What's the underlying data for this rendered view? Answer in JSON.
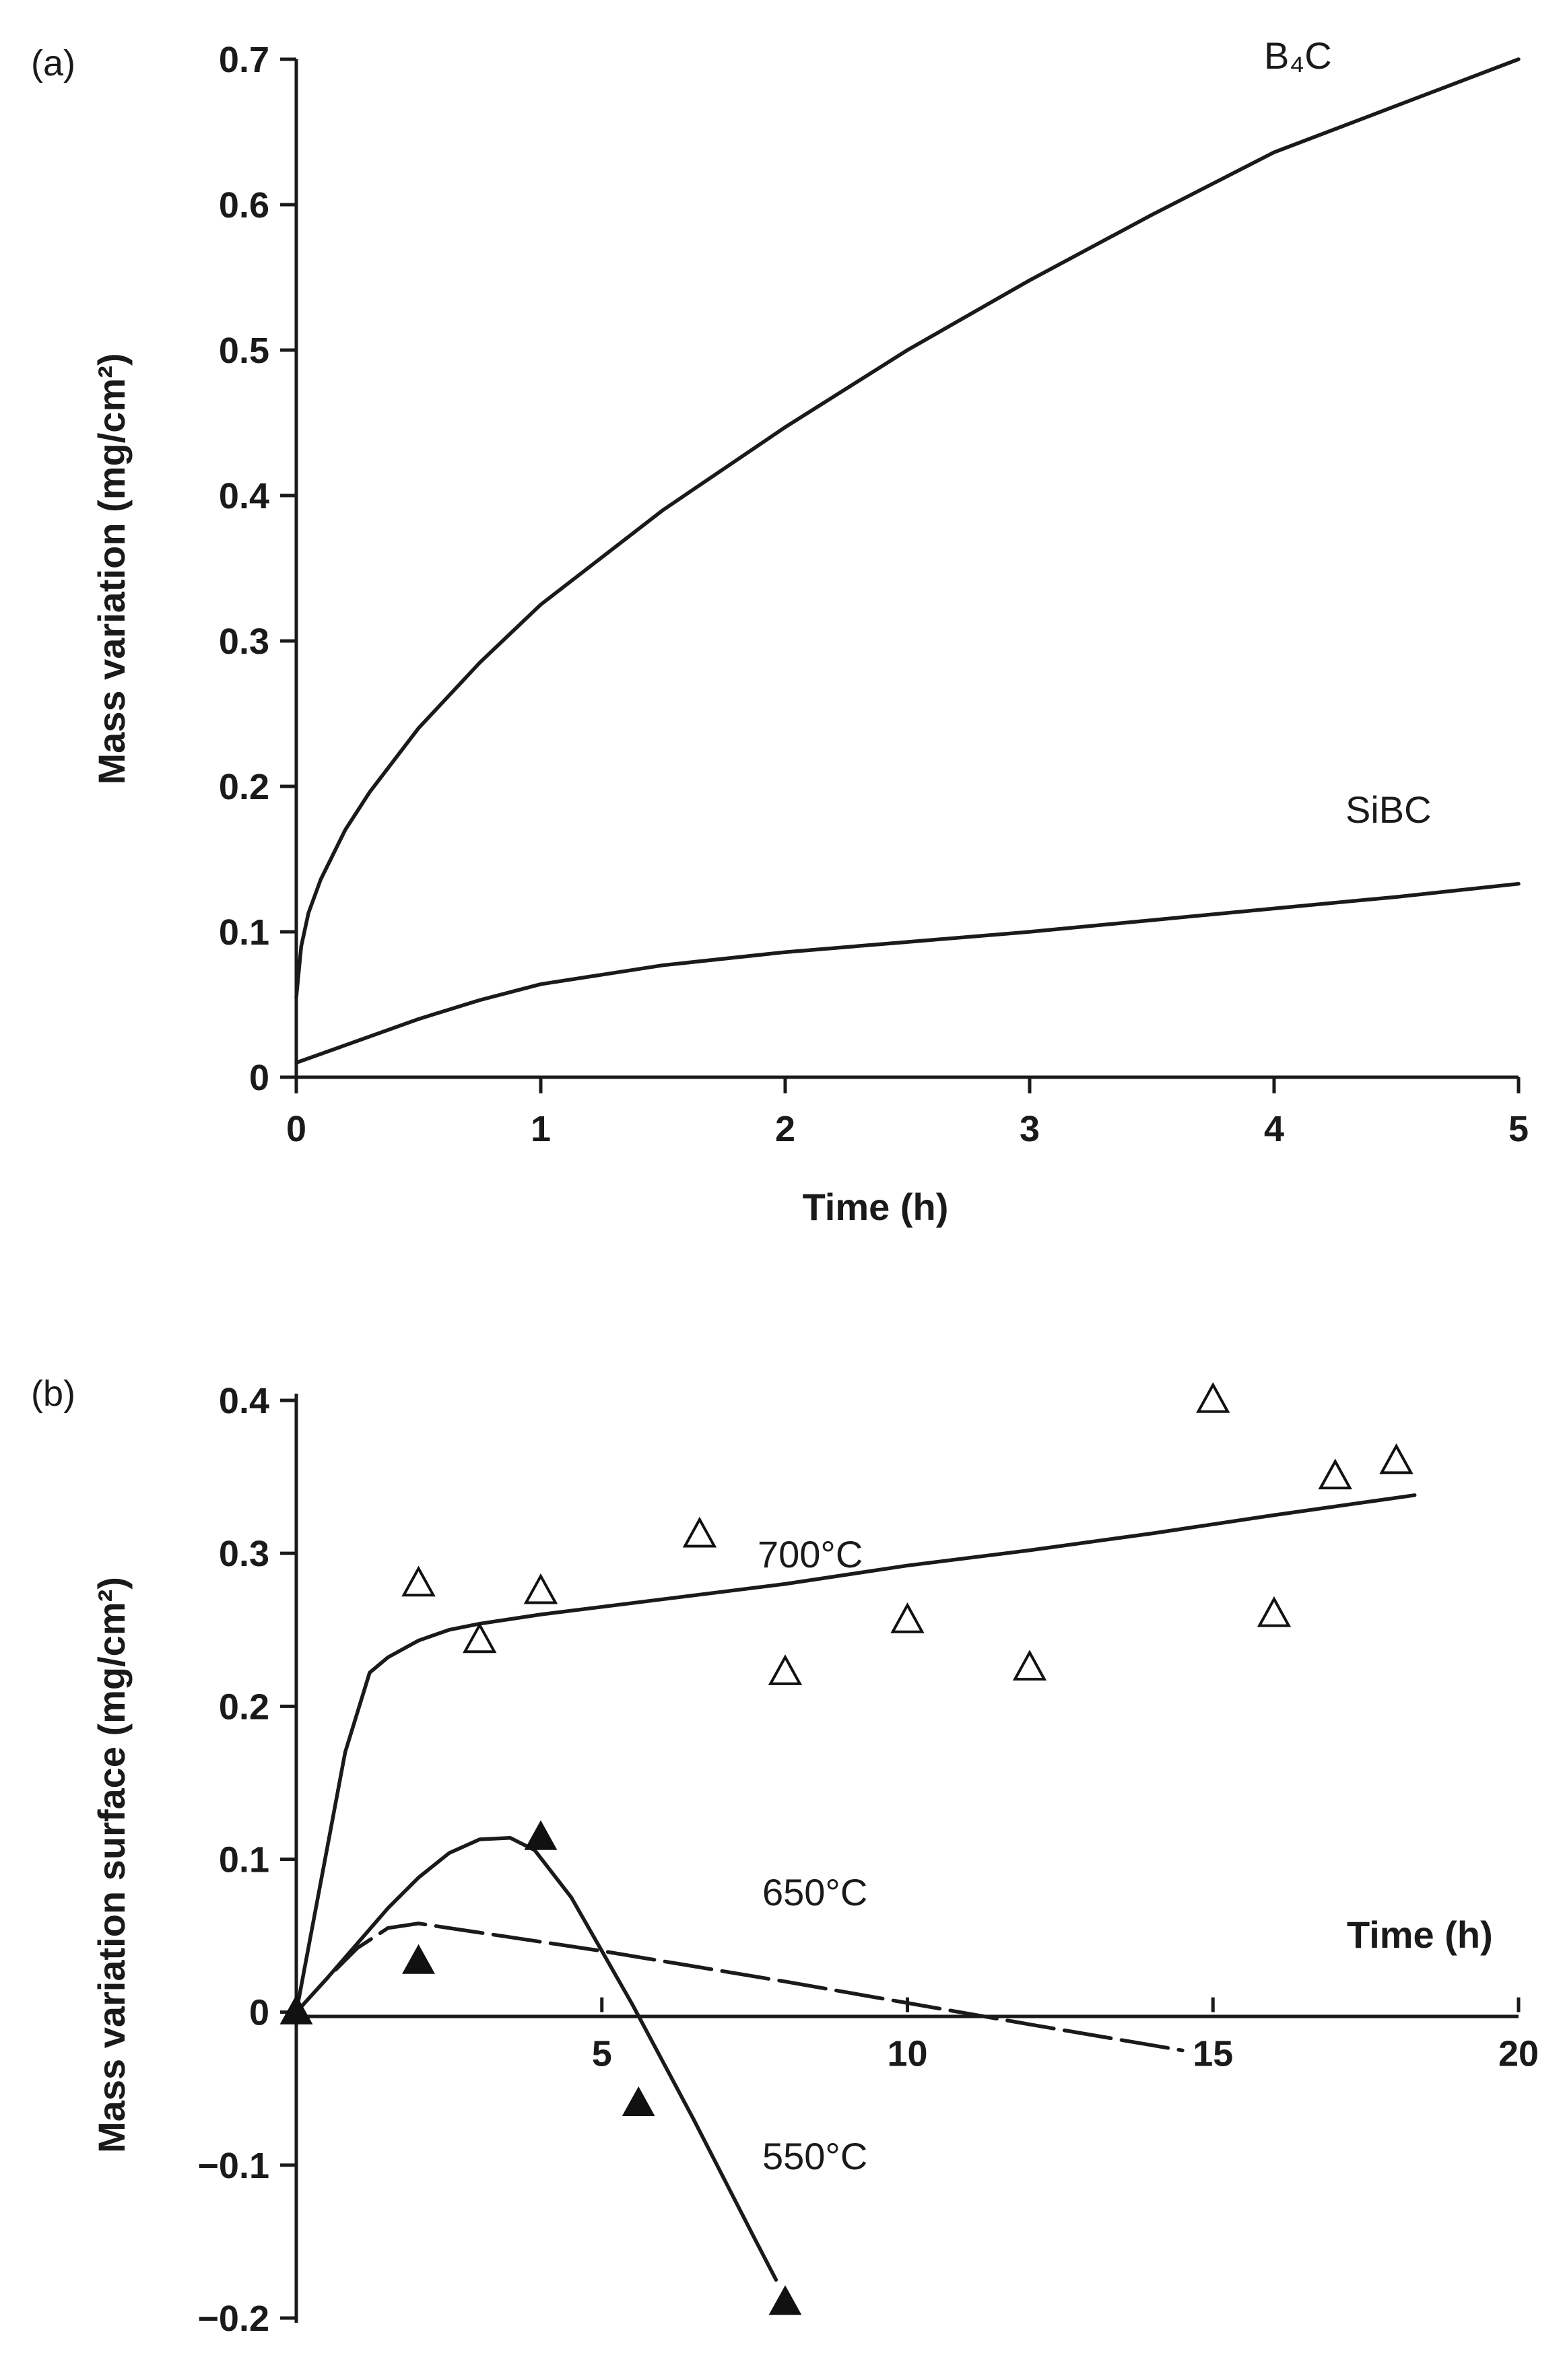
{
  "chart_data": [
    {
      "panel_label": "(a)",
      "type": "line",
      "xlabel": "Time (h)",
      "ylabel": "Mass variation (mg/cm²)",
      "xlim": [
        0,
        5
      ],
      "ylim": [
        0,
        0.7
      ],
      "x_ticks": [
        0,
        1,
        2,
        3,
        4,
        5
      ],
      "x_tick_labels": [
        "0",
        "1",
        "2",
        "3",
        "4",
        "5"
      ],
      "y_ticks": [
        0,
        0.1,
        0.2,
        0.3,
        0.4,
        0.5,
        0.6,
        0.7
      ],
      "y_tick_labels": [
        "0",
        "0.1",
        "0.2",
        "0.3",
        "0.4",
        "0.5",
        "0.6",
        "0.7"
      ],
      "series": [
        {
          "name": "B4C",
          "label": "B₄C",
          "x": [
            0,
            0.02,
            0.05,
            0.1,
            0.2,
            0.3,
            0.5,
            0.75,
            1.0,
            1.5,
            2.0,
            2.5,
            3.0,
            3.5,
            4.0,
            4.5,
            5.0
          ],
          "y": [
            0.055,
            0.09,
            0.113,
            0.136,
            0.17,
            0.196,
            0.24,
            0.285,
            0.325,
            0.39,
            0.447,
            0.5,
            0.548,
            0.593,
            0.636,
            0.668,
            0.7
          ]
        },
        {
          "name": "SiBC",
          "label": "SiBC",
          "x": [
            0,
            0.25,
            0.5,
            0.75,
            1.0,
            1.5,
            2.0,
            2.5,
            3.0,
            3.5,
            4.0,
            4.5,
            5.0
          ],
          "y": [
            0.01,
            0.025,
            0.04,
            0.053,
            0.064,
            0.077,
            0.086,
            0.093,
            0.1,
            0.108,
            0.116,
            0.124,
            0.133
          ]
        }
      ]
    },
    {
      "panel_label": "(b)",
      "type": "scatter",
      "xlabel": "Time (h)",
      "ylabel": "Mass variation surface (mg/cm²)",
      "xlim": [
        0,
        20
      ],
      "ylim": [
        -0.2,
        0.4
      ],
      "x_ticks": [
        5,
        10,
        15,
        20
      ],
      "x_tick_labels": [
        "5",
        "10",
        "15",
        "20"
      ],
      "y_ticks": [
        -0.2,
        -0.1,
        0,
        0.1,
        0.2,
        0.3,
        0.4
      ],
      "y_tick_labels": [
        "−0.2",
        "−0.1",
        "0",
        "0.1",
        "0.2",
        "0.3",
        "0.4"
      ],
      "series": [
        {
          "name": "700°C",
          "label": "700°C",
          "marker": "open-triangle",
          "points_x": [
            2,
            3,
            4,
            6.6,
            8,
            10,
            12,
            15,
            16,
            17,
            18
          ],
          "points_y": [
            0.28,
            0.243,
            0.275,
            0.312,
            0.222,
            0.256,
            0.225,
            0.4,
            0.26,
            0.35,
            0.36
          ],
          "fit_x": [
            0,
            0.4,
            0.8,
            1.2,
            1.5,
            2,
            2.5,
            3,
            4,
            6,
            8,
            10,
            12,
            14,
            16,
            18.3
          ],
          "fit_y": [
            0,
            0.085,
            0.17,
            0.222,
            0.232,
            0.243,
            0.25,
            0.254,
            0.26,
            0.27,
            0.28,
            0.292,
            0.302,
            0.313,
            0.325,
            0.338
          ],
          "fit_style": "solid"
        },
        {
          "name": "650°C",
          "label": "650°C",
          "fit_x": [
            0,
            0.5,
            1,
            1.5,
            2,
            3,
            5,
            8,
            10,
            12,
            14.5
          ],
          "fit_y": [
            0,
            0.022,
            0.042,
            0.055,
            0.058,
            0.052,
            0.04,
            0.02,
            0.006,
            -0.008,
            -0.025
          ],
          "fit_style": "dashed"
        },
        {
          "name": "550°C",
          "label": "550°C",
          "marker": "filled-triangle",
          "points_x": [
            0,
            2,
            4,
            5.6,
            8
          ],
          "points_y": [
            0,
            0.033,
            0.114,
            -0.06,
            -0.19
          ],
          "fit_x": [
            0,
            0.5,
            1,
            1.5,
            2,
            2.5,
            3,
            3.5,
            3.9,
            4.5,
            5.5,
            6.5,
            7.5,
            7.85
          ],
          "fit_y": [
            0,
            0.022,
            0.045,
            0.068,
            0.088,
            0.104,
            0.113,
            0.114,
            0.106,
            0.075,
            0.005,
            -0.07,
            -0.148,
            -0.175
          ],
          "fit_style": "solid"
        }
      ]
    }
  ]
}
